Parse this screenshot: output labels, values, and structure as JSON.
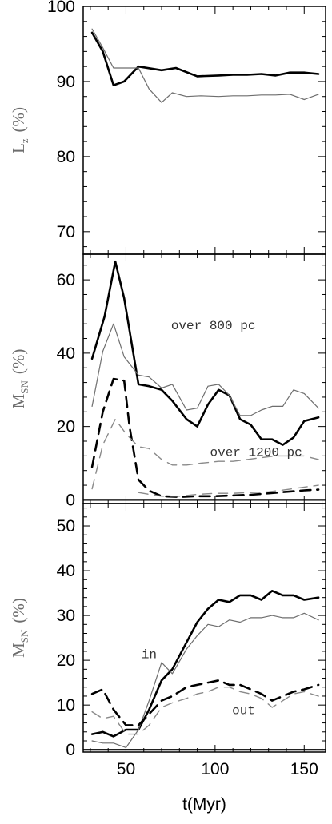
{
  "chart_data": [
    {
      "type": "line",
      "ylabel": "L",
      "ylabel_sub": "z",
      "ylabel_unit": "(%)",
      "xlim": [
        26,
        162
      ],
      "ylim": [
        67,
        100
      ],
      "yticks": [
        70,
        80,
        90,
        100
      ],
      "xticks": [
        50,
        100,
        150
      ],
      "series": [
        {
          "style": "thick-black",
          "x": [
            31,
            37,
            43,
            49,
            57,
            70,
            78,
            90,
            102,
            110,
            118,
            126,
            134,
            142,
            150,
            158
          ],
          "y": [
            96.5,
            94,
            89.5,
            90,
            92,
            91.5,
            91.8,
            90.7,
            90.8,
            90.9,
            90.9,
            91,
            90.8,
            91.2,
            91.2,
            91
          ]
        },
        {
          "style": "thin-gray",
          "x": [
            31,
            37,
            43,
            50,
            57,
            63,
            70,
            76,
            84,
            92,
            102,
            110,
            118,
            126,
            134,
            142,
            150,
            158
          ],
          "y": [
            97,
            94.5,
            91.8,
            91.8,
            91.8,
            89,
            87.2,
            88.5,
            88,
            88.1,
            88,
            88.1,
            88.1,
            88.2,
            88.2,
            88.3,
            87.6,
            88.3
          ]
        }
      ]
    },
    {
      "type": "line",
      "ylabel": "M",
      "ylabel_sub": "SN",
      "ylabel_unit": "(%)",
      "xlim": [
        26,
        162
      ],
      "ylim": [
        -1,
        67
      ],
      "yticks": [
        0,
        20,
        40,
        60
      ],
      "annotations": [
        {
          "text": "over 800 pc",
          "x": 99,
          "y": 46.5
        },
        {
          "text": "over 1200 pc",
          "x": 123,
          "y": 12
        }
      ],
      "series": [
        {
          "style": "thick-black",
          "x": [
            31,
            38,
            44,
            49,
            57,
            63,
            70,
            76,
            84,
            90,
            96,
            102,
            108,
            114,
            120,
            126,
            132,
            138,
            144,
            150,
            158
          ],
          "y": [
            38.5,
            50,
            65,
            55,
            31.5,
            31,
            30,
            27,
            22,
            20,
            26,
            30,
            28.5,
            22,
            20.5,
            16.5,
            16.5,
            15,
            17,
            21.5,
            22.5
          ]
        },
        {
          "style": "thin-gray",
          "x": [
            31,
            37,
            43,
            49,
            57,
            63,
            70,
            76,
            84,
            90,
            96,
            102,
            108,
            114,
            120,
            126,
            132,
            138,
            144,
            150,
            158
          ],
          "y": [
            25.5,
            40.5,
            48,
            39,
            34,
            33.5,
            30.5,
            31.5,
            24.5,
            25,
            31,
            31.5,
            28.5,
            23,
            23,
            24.5,
            25.5,
            25.5,
            30,
            29,
            25
          ]
        },
        {
          "style": "thick-black-dashed",
          "x": [
            31,
            37,
            43,
            49,
            52,
            57,
            63,
            70,
            80,
            90,
            100,
            110,
            120,
            130,
            140,
            150,
            158
          ],
          "y": [
            9,
            24,
            33,
            32.5,
            20,
            5.5,
            2.5,
            1,
            0.8,
            1,
            1,
            1.2,
            1.4,
            1.8,
            2.2,
            2.6,
            2.8
          ]
        },
        {
          "style": "thin-gray-dashed",
          "x": [
            31,
            37,
            44,
            50,
            57,
            63,
            70,
            76,
            84,
            92,
            102,
            110,
            118,
            126,
            134,
            142,
            150,
            158
          ],
          "y": [
            3,
            15,
            22,
            18,
            14.5,
            14,
            11,
            9.5,
            9.5,
            10,
            10.5,
            10.5,
            11,
            11.5,
            12,
            12,
            12,
            11
          ]
        },
        {
          "style": "thin-gray-dashed",
          "x": [
            57,
            63,
            70,
            80,
            90,
            100,
            110,
            120,
            130,
            140,
            150,
            158
          ],
          "y": [
            2,
            1.5,
            1,
            1,
            1.5,
            1.8,
            1.8,
            2,
            2.2,
            2.8,
            3.5,
            4
          ]
        }
      ]
    },
    {
      "type": "line",
      "xlabel": "t(Myr)",
      "ylabel": "M",
      "ylabel_sub": "SN",
      "ylabel_unit": "(%)",
      "xlim": [
        26,
        162
      ],
      "ylim": [
        -0.5,
        55
      ],
      "yticks": [
        0,
        10,
        20,
        30,
        40,
        50
      ],
      "xticks": [
        50,
        100,
        150
      ],
      "annotations": [
        {
          "text": "in",
          "x": 63,
          "y": 20.5
        },
        {
          "text": "out",
          "x": 116,
          "y": 8
        }
      ],
      "series": [
        {
          "style": "thick-black",
          "x": [
            31,
            37,
            43,
            50,
            57,
            63,
            70,
            76,
            84,
            90,
            96,
            102,
            108,
            114,
            120,
            126,
            132,
            138,
            144,
            150,
            158
          ],
          "y": [
            3.5,
            4,
            3,
            4.5,
            4.5,
            9,
            15.5,
            18,
            24,
            28.5,
            31.5,
            33.5,
            33,
            34.5,
            34.5,
            33.5,
            35.5,
            34.5,
            34.5,
            33.5,
            34
          ]
        },
        {
          "style": "thin-gray",
          "x": [
            31,
            37,
            43,
            50,
            57,
            63,
            70,
            76,
            84,
            90,
            96,
            102,
            108,
            114,
            120,
            126,
            132,
            138,
            144,
            150,
            158
          ],
          "y": [
            2,
            1.5,
            1.5,
            0.5,
            4.5,
            11,
            19.5,
            17,
            22.5,
            25.5,
            28,
            27.5,
            29,
            28.5,
            29.5,
            29.5,
            30,
            29.5,
            29.5,
            30.5,
            29
          ]
        },
        {
          "style": "thick-black-dashed",
          "x": [
            31,
            37,
            43,
            50,
            57,
            63,
            70,
            76,
            84,
            90,
            96,
            102,
            108,
            114,
            120,
            126,
            132,
            138,
            144,
            150,
            158
          ],
          "y": [
            12.5,
            13.5,
            9,
            5.5,
            5.5,
            8,
            11,
            12,
            14,
            14.5,
            15,
            15.5,
            14.5,
            14.5,
            13.5,
            12.5,
            11,
            12,
            13,
            13.5,
            14.5
          ]
        },
        {
          "style": "thin-gray-dashed",
          "x": [
            31,
            37,
            43,
            50,
            57,
            63,
            70,
            76,
            84,
            90,
            96,
            102,
            108,
            114,
            120,
            126,
            132,
            138,
            144,
            150,
            158
          ],
          "y": [
            8.5,
            7,
            7.5,
            3.5,
            3.5,
            5.5,
            9.5,
            10.5,
            11.5,
            12.5,
            13,
            14,
            14,
            13,
            12.5,
            11.5,
            9.5,
            11,
            12.5,
            13,
            12
          ]
        }
      ]
    }
  ]
}
